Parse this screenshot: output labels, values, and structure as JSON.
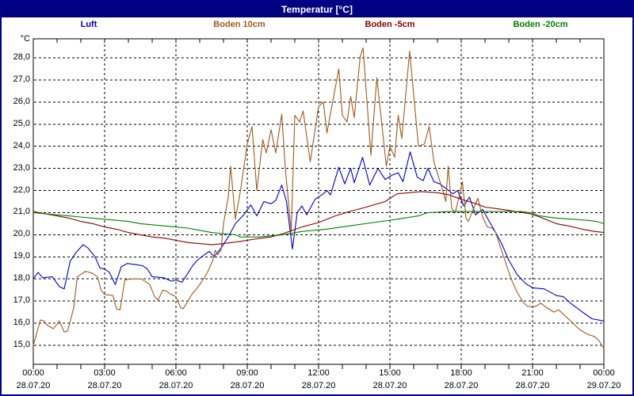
{
  "window": {
    "title": "Temperatur [°C]"
  },
  "legend": [
    {
      "label": "Luft",
      "color": "#0000CC"
    },
    {
      "label": "Boden 10cm",
      "color": "#A05A1E"
    },
    {
      "label": "Boden -5cm",
      "color": "#8B0000"
    },
    {
      "label": "Boden -20cm",
      "color": "#008000"
    }
  ],
  "chart_data": {
    "type": "line",
    "title": "Temperatur [°C]",
    "xlabel": "",
    "ylabel": "°C",
    "ylim": [
      14.1,
      28.9
    ],
    "xlim_hours": [
      0,
      24
    ],
    "grid": "black dashed, 1 °C horizontal steps, 3 h vertical steps",
    "legend_position": "top row",
    "yticks": [
      {
        "label": "28,0",
        "value": 28
      },
      {
        "label": "27,0",
        "value": 27
      },
      {
        "label": "26,0",
        "value": 26
      },
      {
        "label": "25,0",
        "value": 25
      },
      {
        "label": "24,0",
        "value": 24
      },
      {
        "label": "23,0",
        "value": 23
      },
      {
        "label": "22,0",
        "value": 22
      },
      {
        "label": "21,0",
        "value": 21
      },
      {
        "label": "20,0",
        "value": 20
      },
      {
        "label": "19,0",
        "value": 19
      },
      {
        "label": "18,0",
        "value": 18
      },
      {
        "label": "17,0",
        "value": 17
      },
      {
        "label": "16,0",
        "value": 16
      },
      {
        "label": "15,0",
        "value": 15
      }
    ],
    "xticks": [
      {
        "hour": 0,
        "time": "00:00",
        "date": "28.07.20"
      },
      {
        "hour": 3,
        "time": "03:00",
        "date": "28.07.20"
      },
      {
        "hour": 6,
        "time": "06:00",
        "date": "28.07.20"
      },
      {
        "hour": 9,
        "time": "09:00",
        "date": "28.07.20"
      },
      {
        "hour": 12,
        "time": "12:00",
        "date": "28.07.20"
      },
      {
        "hour": 15,
        "time": "15:00",
        "date": "28.07.20"
      },
      {
        "hour": 18,
        "time": "18:00",
        "date": "28.07.20"
      },
      {
        "hour": 21,
        "time": "21:00",
        "date": "28.07.20"
      },
      {
        "hour": 24,
        "time": "00:00",
        "date": "29.07.20"
      }
    ],
    "series": [
      {
        "name": "Luft",
        "color": "#0000CC",
        "points": [
          [
            0,
            18.0
          ],
          [
            0.2,
            18.3
          ],
          [
            0.4,
            18.05
          ],
          [
            0.8,
            18.1
          ],
          [
            1.1,
            17.65
          ],
          [
            1.3,
            17.55
          ],
          [
            1.55,
            18.8
          ],
          [
            1.8,
            19.2
          ],
          [
            2.1,
            19.55
          ],
          [
            2.3,
            19.4
          ],
          [
            2.6,
            19.0
          ],
          [
            2.8,
            18.5
          ],
          [
            3.0,
            18.45
          ],
          [
            3.2,
            18.3
          ],
          [
            3.45,
            17.75
          ],
          [
            3.7,
            18.55
          ],
          [
            3.95,
            18.7
          ],
          [
            4.3,
            18.65
          ],
          [
            4.6,
            18.6
          ],
          [
            4.8,
            18.45
          ],
          [
            5.0,
            18.1
          ],
          [
            5.5,
            18.05
          ],
          [
            5.8,
            17.9
          ],
          [
            6.0,
            17.95
          ],
          [
            6.25,
            17.85
          ],
          [
            6.5,
            18.25
          ],
          [
            6.7,
            18.6
          ],
          [
            6.9,
            18.85
          ],
          [
            7.2,
            19.1
          ],
          [
            7.4,
            19.25
          ],
          [
            7.6,
            19.0
          ],
          [
            7.9,
            19.4
          ],
          [
            8.2,
            19.9
          ],
          [
            8.5,
            20.5
          ],
          [
            8.85,
            20.9
          ],
          [
            9.15,
            21.35
          ],
          [
            9.4,
            20.85
          ],
          [
            9.7,
            21.5
          ],
          [
            10.0,
            21.4
          ],
          [
            10.2,
            21.55
          ],
          [
            10.45,
            22.25
          ],
          [
            10.65,
            21.5
          ],
          [
            10.9,
            19.35
          ],
          [
            11.1,
            21.0
          ],
          [
            11.3,
            21.3
          ],
          [
            11.5,
            20.9
          ],
          [
            11.85,
            21.6
          ],
          [
            12.2,
            21.85
          ],
          [
            12.35,
            22.0
          ],
          [
            12.5,
            21.8
          ],
          [
            12.85,
            23.05
          ],
          [
            13.1,
            22.3
          ],
          [
            13.35,
            23.0
          ],
          [
            13.5,
            22.35
          ],
          [
            13.85,
            23.5
          ],
          [
            14.15,
            22.25
          ],
          [
            14.5,
            23.0
          ],
          [
            14.8,
            22.5
          ],
          [
            15.1,
            22.7
          ],
          [
            15.35,
            22.8
          ],
          [
            15.55,
            22.4
          ],
          [
            15.85,
            23.75
          ],
          [
            16.15,
            22.6
          ],
          [
            16.4,
            22.45
          ],
          [
            16.6,
            23.0
          ],
          [
            16.85,
            22.4
          ],
          [
            17.1,
            22.3
          ],
          [
            17.35,
            22.1
          ],
          [
            17.65,
            21.85
          ],
          [
            17.85,
            22.0
          ],
          [
            18.1,
            21.3
          ],
          [
            18.35,
            21.7
          ],
          [
            18.6,
            20.9
          ],
          [
            18.9,
            21.15
          ],
          [
            19.1,
            20.75
          ],
          [
            19.45,
            20.1
          ],
          [
            19.7,
            19.6
          ],
          [
            20.0,
            18.85
          ],
          [
            20.35,
            18.2
          ],
          [
            20.7,
            17.8
          ],
          [
            21.0,
            17.6
          ],
          [
            21.5,
            17.55
          ],
          [
            22.0,
            17.25
          ],
          [
            22.3,
            17.2
          ],
          [
            22.6,
            16.9
          ],
          [
            23.1,
            16.5
          ],
          [
            23.5,
            16.2
          ],
          [
            24.0,
            16.1
          ]
        ]
      },
      {
        "name": "Boden 10cm",
        "color": "#A05A1E",
        "points": [
          [
            0,
            15.0
          ],
          [
            0.3,
            16.15
          ],
          [
            0.45,
            16.1
          ],
          [
            0.6,
            15.9
          ],
          [
            0.85,
            15.75
          ],
          [
            1.1,
            16.1
          ],
          [
            1.3,
            15.6
          ],
          [
            1.45,
            15.65
          ],
          [
            1.7,
            16.7
          ],
          [
            1.85,
            18.1
          ],
          [
            2.2,
            18.35
          ],
          [
            2.5,
            18.25
          ],
          [
            2.7,
            18.1
          ],
          [
            2.85,
            17.5
          ],
          [
            3.0,
            17.3
          ],
          [
            3.35,
            17.25
          ],
          [
            3.5,
            16.65
          ],
          [
            3.65,
            16.6
          ],
          [
            3.85,
            17.95
          ],
          [
            4.1,
            18.0
          ],
          [
            4.55,
            18.0
          ],
          [
            4.9,
            17.75
          ],
          [
            5.1,
            17.2
          ],
          [
            5.25,
            17.05
          ],
          [
            5.45,
            17.5
          ],
          [
            5.6,
            17.45
          ],
          [
            5.8,
            17.3
          ],
          [
            6.0,
            17.2
          ],
          [
            6.2,
            16.7
          ],
          [
            6.3,
            16.65
          ],
          [
            6.5,
            17.0
          ],
          [
            6.7,
            17.35
          ],
          [
            6.9,
            17.6
          ],
          [
            7.1,
            17.9
          ],
          [
            7.35,
            18.35
          ],
          [
            7.55,
            18.85
          ],
          [
            7.65,
            19.3
          ],
          [
            7.75,
            19.1
          ],
          [
            7.9,
            19.3
          ],
          [
            8.0,
            20.5
          ],
          [
            8.2,
            21.7
          ],
          [
            8.3,
            23.1
          ],
          [
            8.5,
            20.7
          ],
          [
            8.7,
            21.9
          ],
          [
            9.0,
            24.1
          ],
          [
            9.2,
            24.9
          ],
          [
            9.4,
            22.0
          ],
          [
            9.65,
            24.3
          ],
          [
            9.8,
            23.7
          ],
          [
            10.0,
            24.75
          ],
          [
            10.2,
            23.7
          ],
          [
            10.45,
            25.45
          ],
          [
            10.6,
            23.0
          ],
          [
            10.85,
            20.15
          ],
          [
            11.0,
            25.4
          ],
          [
            11.2,
            25.1
          ],
          [
            11.35,
            25.6
          ],
          [
            11.65,
            23.3
          ],
          [
            12.0,
            25.8
          ],
          [
            12.2,
            26.0
          ],
          [
            12.35,
            24.6
          ],
          [
            12.85,
            27.5
          ],
          [
            13.0,
            25.4
          ],
          [
            13.2,
            25.1
          ],
          [
            13.35,
            26.25
          ],
          [
            13.5,
            25.3
          ],
          [
            13.75,
            28.05
          ],
          [
            13.87,
            28.45
          ],
          [
            14.2,
            23.6
          ],
          [
            14.45,
            27.1
          ],
          [
            14.85,
            23.1
          ],
          [
            15.0,
            24.0
          ],
          [
            15.2,
            23.5
          ],
          [
            15.35,
            25.4
          ],
          [
            15.5,
            24.35
          ],
          [
            15.83,
            28.3
          ],
          [
            16.2,
            24.0
          ],
          [
            16.45,
            24.1
          ],
          [
            16.65,
            24.9
          ],
          [
            16.85,
            23.3
          ],
          [
            17.05,
            22.6
          ],
          [
            17.25,
            21.9
          ],
          [
            17.35,
            21.5
          ],
          [
            17.45,
            23.1
          ],
          [
            17.6,
            21.2
          ],
          [
            17.75,
            21.0
          ],
          [
            18.05,
            22.4
          ],
          [
            18.2,
            20.75
          ],
          [
            18.3,
            20.6
          ],
          [
            18.7,
            21.65
          ],
          [
            18.9,
            20.8
          ],
          [
            19.1,
            20.35
          ],
          [
            19.3,
            20.3
          ],
          [
            19.45,
            20.1
          ],
          [
            19.6,
            19.6
          ],
          [
            19.85,
            18.8
          ],
          [
            20.1,
            18.0
          ],
          [
            20.35,
            17.4
          ],
          [
            20.6,
            16.95
          ],
          [
            20.8,
            16.75
          ],
          [
            21.1,
            16.75
          ],
          [
            21.35,
            16.9
          ],
          [
            21.6,
            16.7
          ],
          [
            21.9,
            16.5
          ],
          [
            22.1,
            16.6
          ],
          [
            22.4,
            16.3
          ],
          [
            22.7,
            16.0
          ],
          [
            23.0,
            15.7
          ],
          [
            23.3,
            15.5
          ],
          [
            23.6,
            15.4
          ],
          [
            23.8,
            15.2
          ],
          [
            24.0,
            14.85
          ]
        ]
      },
      {
        "name": "Boden -5cm",
        "color": "#8B0000",
        "points": [
          [
            0,
            21.05
          ],
          [
            0.5,
            20.95
          ],
          [
            1.0,
            20.85
          ],
          [
            1.5,
            20.75
          ],
          [
            2.0,
            20.6
          ],
          [
            2.5,
            20.5
          ],
          [
            3.0,
            20.35
          ],
          [
            3.5,
            20.25
          ],
          [
            4.0,
            20.1
          ],
          [
            4.5,
            20.0
          ],
          [
            5.0,
            19.9
          ],
          [
            5.5,
            19.85
          ],
          [
            6.0,
            19.75
          ],
          [
            6.5,
            19.65
          ],
          [
            7.0,
            19.6
          ],
          [
            7.5,
            19.55
          ],
          [
            8.0,
            19.6
          ],
          [
            8.7,
            19.7
          ],
          [
            9.3,
            19.8
          ],
          [
            10.0,
            19.9
          ],
          [
            10.5,
            20.05
          ],
          [
            11.3,
            20.35
          ],
          [
            12.0,
            20.55
          ],
          [
            12.7,
            20.85
          ],
          [
            13.3,
            21.05
          ],
          [
            14.0,
            21.25
          ],
          [
            14.8,
            21.5
          ],
          [
            15.3,
            21.85
          ],
          [
            15.8,
            21.9
          ],
          [
            16.3,
            21.95
          ],
          [
            17.0,
            21.9
          ],
          [
            17.5,
            21.8
          ],
          [
            18.0,
            21.6
          ],
          [
            18.5,
            21.45
          ],
          [
            19.0,
            21.25
          ],
          [
            19.7,
            21.15
          ],
          [
            20.3,
            21.05
          ],
          [
            20.9,
            20.95
          ],
          [
            21.3,
            20.8
          ],
          [
            22.0,
            20.5
          ],
          [
            22.5,
            20.4
          ],
          [
            23.1,
            20.25
          ],
          [
            23.6,
            20.15
          ],
          [
            24.0,
            20.1
          ]
        ]
      },
      {
        "name": "Boden -20cm",
        "color": "#008000",
        "points": [
          [
            0,
            21.0
          ],
          [
            0.5,
            20.95
          ],
          [
            1.0,
            20.9
          ],
          [
            1.5,
            20.85
          ],
          [
            2.0,
            20.8
          ],
          [
            2.5,
            20.75
          ],
          [
            3.0,
            20.7
          ],
          [
            3.5,
            20.65
          ],
          [
            4.0,
            20.6
          ],
          [
            4.5,
            20.5
          ],
          [
            5.0,
            20.45
          ],
          [
            5.5,
            20.4
          ],
          [
            6.0,
            20.35
          ],
          [
            6.5,
            20.3
          ],
          [
            7.0,
            20.2
          ],
          [
            7.5,
            20.1
          ],
          [
            8.0,
            20.05
          ],
          [
            8.5,
            20.0
          ],
          [
            8.7,
            19.9
          ],
          [
            9.5,
            19.9
          ],
          [
            10.0,
            19.95
          ],
          [
            10.5,
            20.0
          ],
          [
            11.3,
            20.15
          ],
          [
            12.3,
            20.25
          ],
          [
            13.3,
            20.4
          ],
          [
            14.3,
            20.55
          ],
          [
            15.3,
            20.7
          ],
          [
            16.2,
            20.85
          ],
          [
            16.6,
            21.0
          ],
          [
            17.5,
            21.05
          ],
          [
            18.5,
            21.05
          ],
          [
            19.5,
            21.05
          ],
          [
            20.5,
            21.05
          ],
          [
            20.9,
            21.0
          ],
          [
            21.3,
            20.85
          ],
          [
            22.0,
            20.75
          ],
          [
            22.7,
            20.7
          ],
          [
            23.3,
            20.65
          ],
          [
            23.7,
            20.6
          ],
          [
            24.0,
            20.5
          ]
        ]
      }
    ]
  }
}
